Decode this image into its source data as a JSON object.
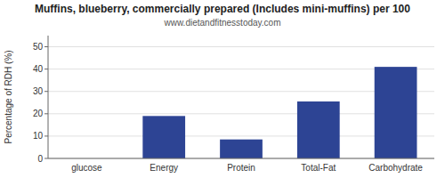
{
  "chart_data": {
    "type": "bar",
    "title": "Muffins, blueberry, commercially prepared (Includes mini-muffins) per 100",
    "subtitle": "www.dietandfitnesstoday.com",
    "categories": [
      "glucose",
      "Energy",
      "Protein",
      "Total-Fat",
      "Carbohydrate"
    ],
    "values": [
      0,
      19,
      8.5,
      25.5,
      41
    ],
    "color": "#2d4494",
    "ylabel": "Percentage of RDH (%)",
    "ylim": [
      0,
      55
    ],
    "yticks": [
      0,
      10,
      20,
      30,
      40,
      50
    ],
    "grid": true
  }
}
